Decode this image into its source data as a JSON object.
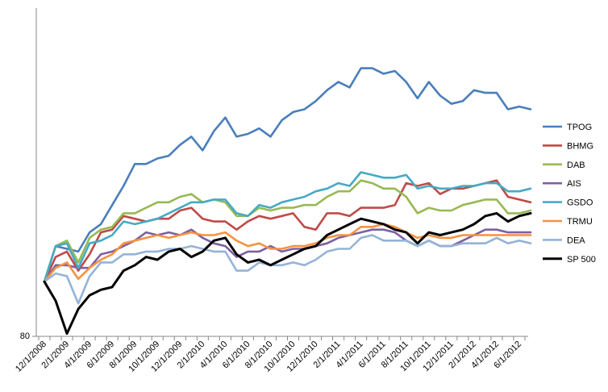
{
  "chart_data": {
    "type": "line",
    "title": "",
    "xlabel": "",
    "ylabel": "",
    "y_tick_labels": [
      "80"
    ],
    "ylim": [
      80,
      200
    ],
    "grid": false,
    "legend_position": "right",
    "x": [
      "12/1/2008",
      "1/1/2009",
      "2/1/2009",
      "3/1/2009",
      "4/1/2009",
      "5/1/2009",
      "6/1/2009",
      "7/1/2009",
      "8/1/2009",
      "9/1/2009",
      "10/1/2009",
      "11/1/2009",
      "12/1/2009",
      "1/1/2010",
      "2/1/2010",
      "3/1/2010",
      "4/1/2010",
      "5/1/2010",
      "6/1/2010",
      "7/1/2010",
      "8/1/2010",
      "9/1/2010",
      "10/1/2010",
      "11/1/2010",
      "12/1/2010",
      "1/1/2011",
      "2/1/2011",
      "3/1/2011",
      "4/1/2011",
      "5/1/2011",
      "6/1/2011",
      "7/1/2011",
      "8/1/2011",
      "9/1/2011",
      "10/1/2011",
      "11/1/2011",
      "12/1/2011",
      "1/1/2012",
      "2/1/2012",
      "3/1/2012",
      "4/1/2012",
      "5/1/2012",
      "6/1/2012",
      "7/1/2012"
    ],
    "x_tick_labels": [
      "12/1/2008",
      "2/1/2009",
      "4/1/2009",
      "6/1/2009",
      "8/1/2009",
      "10/1/2009",
      "12/1/2009",
      "2/1/2010",
      "4/1/2010",
      "6/1/2010",
      "8/1/2010",
      "10/1/2010",
      "12/1/2010",
      "2/1/2011",
      "4/1/2011",
      "6/1/2011",
      "8/1/2011",
      "10/1/2011",
      "12/1/2011",
      "2/1/2012",
      "4/1/2012",
      "6/1/2012"
    ],
    "series": [
      {
        "name": "TPOG",
        "color": "#4A7EBB",
        "values": [
          100,
          113,
          112,
          111,
          118,
          121,
          128,
          135,
          143,
          143,
          145,
          146,
          150,
          153,
          148,
          155,
          160,
          153,
          154,
          156,
          153,
          159,
          162,
          163,
          166,
          170,
          173,
          171,
          178,
          178,
          176,
          177,
          173,
          167,
          173,
          168,
          165,
          166,
          170,
          169,
          169,
          163,
          164,
          163
        ]
      },
      {
        "name": "BHMG",
        "color": "#BE4B48",
        "values": [
          100,
          109,
          111,
          104,
          110,
          118,
          119,
          124,
          123,
          122,
          123,
          123,
          126,
          127,
          123,
          122,
          122,
          119,
          122,
          124,
          123,
          124,
          125,
          120,
          119,
          125,
          125,
          124,
          127,
          127,
          127,
          128,
          136,
          135,
          136,
          132,
          134,
          134,
          135,
          136,
          137,
          131,
          130,
          129
        ]
      },
      {
        "name": "DAB",
        "color": "#98B954",
        "values": [
          100,
          113,
          115,
          107,
          116,
          119,
          120,
          125,
          125,
          127,
          129,
          129,
          131,
          132,
          129,
          130,
          129,
          124,
          124,
          127,
          126,
          127,
          127,
          128,
          128,
          131,
          133,
          133,
          137,
          136,
          134,
          134,
          131,
          125,
          127,
          126,
          126,
          128,
          129,
          130,
          130,
          125,
          125,
          126
        ]
      },
      {
        "name": "AIS",
        "color": "#7D60A0",
        "values": [
          100,
          106,
          106,
          105,
          105,
          110,
          111,
          113,
          115,
          118,
          117,
          118,
          117,
          119,
          116,
          114,
          113,
          109,
          111,
          111,
          113,
          111,
          112,
          112,
          113,
          114,
          116,
          117,
          118,
          119,
          119,
          118,
          115,
          113,
          115,
          113,
          113,
          115,
          117,
          119,
          119,
          118,
          118,
          118
        ]
      },
      {
        "name": "GSDO",
        "color": "#46AAC5",
        "values": [
          100,
          113,
          114,
          105,
          114,
          115,
          117,
          122,
          121,
          122,
          123,
          125,
          127,
          129,
          129,
          130,
          130,
          125,
          124,
          128,
          127,
          129,
          130,
          131,
          133,
          134,
          136,
          135,
          140,
          139,
          138,
          138,
          139,
          134,
          135,
          134,
          134,
          135,
          135,
          136,
          136,
          133,
          133,
          134
        ]
      },
      {
        "name": "TRMU",
        "color": "#F69240",
        "values": [
          100,
          105,
          107,
          101,
          105,
          108,
          110,
          114,
          115,
          116,
          117,
          116,
          117,
          118,
          117,
          117,
          118,
          115,
          113,
          114,
          112,
          112,
          113,
          113,
          114,
          116,
          117,
          117,
          120,
          120,
          121,
          120,
          118,
          116,
          117,
          116,
          116,
          117,
          117,
          117,
          117,
          117,
          117,
          117
        ]
      },
      {
        "name": "DEA",
        "color": "#95B3D7",
        "values": [
          100,
          103,
          102,
          92,
          102,
          107,
          107,
          110,
          110,
          111,
          111,
          112,
          112,
          113,
          112,
          111,
          111,
          104,
          104,
          107,
          106,
          106,
          107,
          106,
          108,
          111,
          112,
          112,
          116,
          117,
          115,
          115,
          115,
          113,
          115,
          113,
          113,
          114,
          114,
          114,
          116,
          114,
          115,
          114
        ]
      },
      {
        "name": "SP 500",
        "color": "#000000",
        "values": [
          100,
          93,
          81,
          90,
          95,
          97,
          98,
          104,
          106,
          109,
          108,
          111,
          112,
          109,
          111,
          115,
          116,
          110,
          107,
          108,
          106,
          108,
          110,
          112,
          113,
          117,
          119,
          121,
          123,
          122,
          121,
          119,
          118,
          114,
          118,
          117,
          118,
          119,
          121,
          124,
          125,
          122,
          124,
          125
        ]
      }
    ]
  }
}
